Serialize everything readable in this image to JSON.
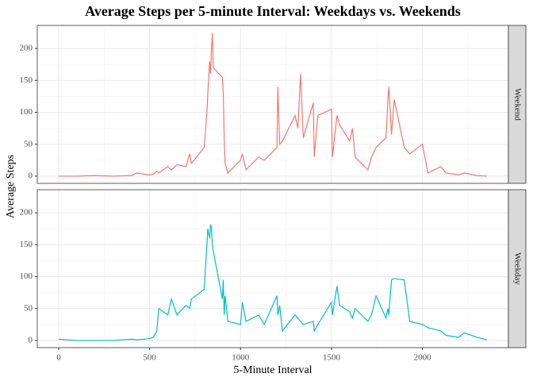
{
  "chart_data": {
    "type": "line",
    "title": "Average Steps per 5-minute Interval: Weekdays vs. Weekends",
    "x_label": "5-Minute Interval",
    "y_label": "Average Steps",
    "xlim": [
      -117.75,
      2472.75
    ],
    "xticks": [
      0,
      500,
      1000,
      1500,
      2000
    ],
    "x_minor_ticks": [
      250,
      750,
      1250,
      1750,
      2250
    ],
    "ylim": [
      -11.25,
      236.25
    ],
    "yticks": [
      0,
      50,
      100,
      150,
      200
    ],
    "y_minor_ticks": [
      25,
      75,
      125,
      175
    ],
    "grid": true,
    "x": [
      0,
      100,
      200,
      300,
      400,
      430,
      500,
      520,
      540,
      550,
      600,
      620,
      650,
      700,
      720,
      730,
      800,
      815,
      820,
      830,
      835,
      840,
      845,
      850,
      900,
      905,
      910,
      915,
      930,
      1000,
      1010,
      1030,
      1100,
      1130,
      1200,
      1205,
      1215,
      1230,
      1300,
      1315,
      1330,
      1345,
      1400,
      1405,
      1425,
      1500,
      1505,
      1530,
      1545,
      1600,
      1615,
      1630,
      1700,
      1720,
      1745,
      1800,
      1810,
      1815,
      1830,
      1845,
      1900,
      1930,
      2000,
      2030,
      2100,
      2130,
      2200,
      2230,
      2300,
      2355
    ],
    "series": [
      {
        "name": "Weekend",
        "color": "#f8766d",
        "values": [
          0,
          0,
          1,
          0,
          1,
          5,
          2,
          3,
          8,
          5,
          15,
          10,
          18,
          15,
          35,
          20,
          45,
          100,
          130,
          180,
          160,
          200,
          224,
          170,
          155,
          130,
          60,
          20,
          5,
          25,
          35,
          10,
          30,
          25,
          45,
          140,
          50,
          55,
          95,
          75,
          160,
          60,
          115,
          30,
          95,
          105,
          30,
          95,
          80,
          55,
          75,
          30,
          10,
          30,
          45,
          60,
          120,
          140,
          65,
          120,
          45,
          35,
          50,
          5,
          15,
          5,
          2,
          5,
          1,
          0
        ]
      },
      {
        "name": "Weekday",
        "color": "#00bfc4",
        "values": [
          2,
          0,
          0,
          0,
          2,
          1,
          3,
          5,
          15,
          50,
          40,
          65,
          40,
          55,
          50,
          65,
          80,
          150,
          175,
          160,
          182,
          175,
          150,
          140,
          65,
          95,
          40,
          70,
          30,
          25,
          60,
          30,
          40,
          25,
          70,
          40,
          55,
          15,
          40,
          35,
          30,
          25,
          30,
          15,
          25,
          60,
          40,
          85,
          55,
          45,
          35,
          50,
          30,
          40,
          70,
          35,
          50,
          40,
          95,
          97,
          95,
          30,
          25,
          20,
          15,
          8,
          5,
          12,
          5,
          1
        ]
      }
    ]
  }
}
